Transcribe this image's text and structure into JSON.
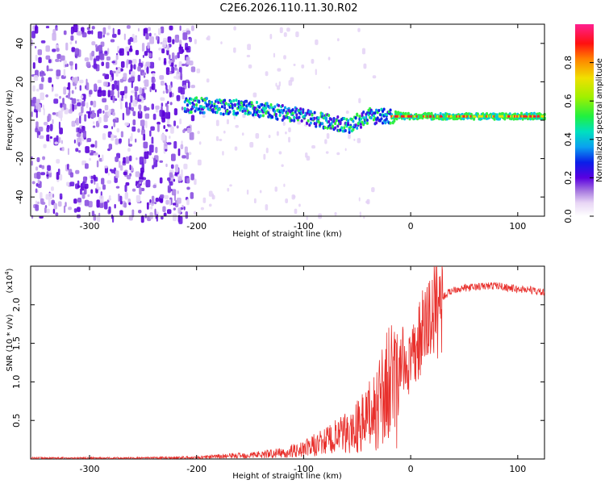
{
  "title": "C2E6.2026.110.11.30.R02",
  "chart_data": [
    {
      "type": "heatmap",
      "xlabel": "Height of straight line (km)",
      "ylabel": "Frequency (Hz)",
      "xlim": [
        -355,
        125
      ],
      "ylim": [
        -50,
        50
      ],
      "xticks": [
        -300,
        -200,
        -100,
        0,
        100
      ],
      "yticks": [
        -40,
        -20,
        0,
        20,
        40
      ],
      "xtick_labels": [
        "-300",
        "-200",
        "-100",
        "0",
        "100"
      ],
      "ytick_labels": [
        "-40",
        "-20",
        "0",
        "20",
        "40"
      ],
      "colorbar": {
        "label": "Normalized spectral amplitude",
        "range": [
          0,
          1
        ],
        "ticks": [
          0.0,
          0.2,
          0.4,
          0.6,
          0.8
        ],
        "tick_labels": [
          "0.0",
          "0.2",
          "0.4",
          "0.6",
          "0.8"
        ]
      },
      "ridge": {
        "description_points_x": [
          -210,
          -150,
          -100,
          -60,
          -40,
          -20,
          0,
          50,
          100,
          125
        ],
        "description_points_y": [
          8,
          6,
          2,
          -3,
          2,
          2,
          2,
          2,
          2,
          2
        ]
      }
    },
    {
      "type": "line",
      "xlabel": "Height of straight line (km)",
      "ylabel": "SNR (10 * v/v)",
      "scale_label": "(x10",
      "scale_exponent": "4",
      "scale_suffix": ")",
      "xlim": [
        -355,
        125
      ],
      "ylim": [
        0,
        2.5
      ],
      "xticks": [
        -300,
        -200,
        -100,
        0,
        100
      ],
      "yticks": [
        0.5,
        1.0,
        1.5,
        2.0
      ],
      "xtick_labels": [
        "-300",
        "-200",
        "-100",
        "0",
        "100"
      ],
      "ytick_labels": [
        "0.5",
        "1.0",
        "1.5",
        "2.0"
      ],
      "series": [
        {
          "name": "SNR",
          "color": "#e8302c",
          "envelope_x": [
            -355,
            -250,
            -200,
            -150,
            -120,
            -100,
            -80,
            -60,
            -40,
            -30,
            -20,
            -10,
            0,
            10,
            20,
            30,
            40,
            60,
            80,
            100,
            110,
            125
          ],
          "envelope_y": [
            0.02,
            0.02,
            0.03,
            0.08,
            0.12,
            0.2,
            0.35,
            0.5,
            0.8,
            1.1,
            1.5,
            1.3,
            1.2,
            1.6,
            1.9,
            2.1,
            2.2,
            2.23,
            2.25,
            2.2,
            2.2,
            2.15
          ]
        }
      ]
    }
  ]
}
